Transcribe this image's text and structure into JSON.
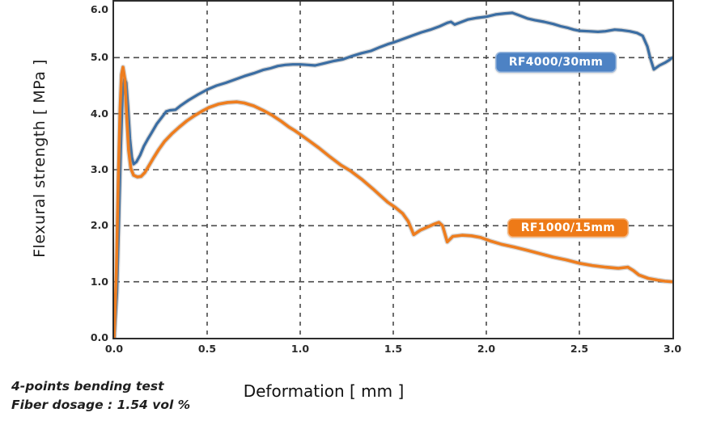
{
  "chart_data": {
    "type": "line",
    "xlabel": "Deformation [ mm ]",
    "ylabel": "Flexural strength [ MPa ]",
    "xlim": [
      0,
      3.0
    ],
    "ylim": [
      0,
      6.0
    ],
    "x_ticks": [
      "0.0",
      "0.5",
      "1.0",
      "1.5",
      "2.0",
      "2.5",
      "3.0"
    ],
    "y_ticks": [
      "0.0",
      "1.0",
      "2.0",
      "3.0",
      "4.0",
      "5.0",
      "6.0"
    ],
    "grid": "dashed",
    "grid_color": "#4a4a4a",
    "border_color": "#2d2d2d",
    "legend_position": "on-chart",
    "series": [
      {
        "name": "RF4000/30mm",
        "color": "#3A6DA3",
        "label_bg": "#4D82C4",
        "points": [
          [
            0.0,
            0.0
          ],
          [
            0.015,
            0.8
          ],
          [
            0.025,
            2.0
          ],
          [
            0.035,
            3.3
          ],
          [
            0.045,
            4.3
          ],
          [
            0.055,
            4.62
          ],
          [
            0.065,
            4.55
          ],
          [
            0.075,
            4.1
          ],
          [
            0.085,
            3.55
          ],
          [
            0.095,
            3.22
          ],
          [
            0.105,
            3.1
          ],
          [
            0.12,
            3.14
          ],
          [
            0.14,
            3.26
          ],
          [
            0.16,
            3.42
          ],
          [
            0.18,
            3.54
          ],
          [
            0.2,
            3.65
          ],
          [
            0.23,
            3.82
          ],
          [
            0.26,
            3.95
          ],
          [
            0.28,
            4.04
          ],
          [
            0.3,
            4.06
          ],
          [
            0.33,
            4.07
          ],
          [
            0.36,
            4.15
          ],
          [
            0.4,
            4.24
          ],
          [
            0.45,
            4.34
          ],
          [
            0.5,
            4.43
          ],
          [
            0.55,
            4.5
          ],
          [
            0.6,
            4.55
          ],
          [
            0.65,
            4.61
          ],
          [
            0.7,
            4.67
          ],
          [
            0.75,
            4.72
          ],
          [
            0.8,
            4.78
          ],
          [
            0.84,
            4.81
          ],
          [
            0.88,
            4.85
          ],
          [
            0.92,
            4.87
          ],
          [
            0.96,
            4.88
          ],
          [
            1.0,
            4.88
          ],
          [
            1.04,
            4.87
          ],
          [
            1.08,
            4.86
          ],
          [
            1.13,
            4.9
          ],
          [
            1.18,
            4.94
          ],
          [
            1.23,
            4.97
          ],
          [
            1.28,
            5.03
          ],
          [
            1.33,
            5.08
          ],
          [
            1.38,
            5.12
          ],
          [
            1.43,
            5.19
          ],
          [
            1.47,
            5.24
          ],
          [
            1.5,
            5.27
          ],
          [
            1.55,
            5.33
          ],
          [
            1.6,
            5.39
          ],
          [
            1.65,
            5.45
          ],
          [
            1.7,
            5.5
          ],
          [
            1.75,
            5.56
          ],
          [
            1.79,
            5.62
          ],
          [
            1.81,
            5.64
          ],
          [
            1.83,
            5.59
          ],
          [
            1.86,
            5.63
          ],
          [
            1.9,
            5.68
          ],
          [
            1.95,
            5.71
          ],
          [
            2.0,
            5.73
          ],
          [
            2.05,
            5.77
          ],
          [
            2.1,
            5.79
          ],
          [
            2.14,
            5.8
          ],
          [
            2.18,
            5.75
          ],
          [
            2.22,
            5.7
          ],
          [
            2.26,
            5.67
          ],
          [
            2.31,
            5.64
          ],
          [
            2.36,
            5.6
          ],
          [
            2.4,
            5.56
          ],
          [
            2.44,
            5.53
          ],
          [
            2.47,
            5.5
          ],
          [
            2.5,
            5.48
          ],
          [
            2.55,
            5.47
          ],
          [
            2.6,
            5.46
          ],
          [
            2.64,
            5.47
          ],
          [
            2.69,
            5.5
          ],
          [
            2.73,
            5.49
          ],
          [
            2.77,
            5.47
          ],
          [
            2.81,
            5.44
          ],
          [
            2.84,
            5.39
          ],
          [
            2.865,
            5.2
          ],
          [
            2.88,
            5.0
          ],
          [
            2.9,
            4.79
          ],
          [
            2.93,
            4.86
          ],
          [
            2.96,
            4.91
          ],
          [
            2.98,
            4.95
          ],
          [
            3.0,
            5.0
          ]
        ]
      },
      {
        "name": "RF1000/15mm",
        "color": "#EE7D1E",
        "label_bg": "#EE7A17",
        "points": [
          [
            0.0,
            0.0
          ],
          [
            0.012,
            1.2
          ],
          [
            0.022,
            2.8
          ],
          [
            0.032,
            4.1
          ],
          [
            0.04,
            4.7
          ],
          [
            0.048,
            4.83
          ],
          [
            0.058,
            4.62
          ],
          [
            0.068,
            3.95
          ],
          [
            0.078,
            3.35
          ],
          [
            0.09,
            3.02
          ],
          [
            0.105,
            2.9
          ],
          [
            0.125,
            2.87
          ],
          [
            0.145,
            2.88
          ],
          [
            0.165,
            2.95
          ],
          [
            0.185,
            3.06
          ],
          [
            0.21,
            3.2
          ],
          [
            0.24,
            3.36
          ],
          [
            0.27,
            3.5
          ],
          [
            0.31,
            3.64
          ],
          [
            0.35,
            3.76
          ],
          [
            0.39,
            3.87
          ],
          [
            0.43,
            3.96
          ],
          [
            0.47,
            4.04
          ],
          [
            0.51,
            4.11
          ],
          [
            0.56,
            4.17
          ],
          [
            0.61,
            4.2
          ],
          [
            0.66,
            4.21
          ],
          [
            0.7,
            4.19
          ],
          [
            0.75,
            4.14
          ],
          [
            0.8,
            4.06
          ],
          [
            0.85,
            3.97
          ],
          [
            0.9,
            3.86
          ],
          [
            0.94,
            3.76
          ],
          [
            0.97,
            3.7
          ],
          [
            1.0,
            3.63
          ],
          [
            1.05,
            3.51
          ],
          [
            1.1,
            3.39
          ],
          [
            1.16,
            3.23
          ],
          [
            1.22,
            3.08
          ],
          [
            1.27,
            2.98
          ],
          [
            1.33,
            2.83
          ],
          [
            1.39,
            2.66
          ],
          [
            1.43,
            2.54
          ],
          [
            1.47,
            2.42
          ],
          [
            1.51,
            2.33
          ],
          [
            1.55,
            2.22
          ],
          [
            1.58,
            2.08
          ],
          [
            1.61,
            1.84
          ],
          [
            1.645,
            1.92
          ],
          [
            1.68,
            1.97
          ],
          [
            1.72,
            2.03
          ],
          [
            1.745,
            2.06
          ],
          [
            1.765,
            2.0
          ],
          [
            1.79,
            1.71
          ],
          [
            1.82,
            1.81
          ],
          [
            1.87,
            1.83
          ],
          [
            1.92,
            1.82
          ],
          [
            1.97,
            1.79
          ],
          [
            2.02,
            1.73
          ],
          [
            2.08,
            1.67
          ],
          [
            2.15,
            1.62
          ],
          [
            2.22,
            1.56
          ],
          [
            2.29,
            1.5
          ],
          [
            2.36,
            1.44
          ],
          [
            2.43,
            1.39
          ],
          [
            2.5,
            1.33
          ],
          [
            2.57,
            1.29
          ],
          [
            2.64,
            1.26
          ],
          [
            2.71,
            1.24
          ],
          [
            2.76,
            1.26
          ],
          [
            2.79,
            1.2
          ],
          [
            2.82,
            1.12
          ],
          [
            2.87,
            1.06
          ],
          [
            2.92,
            1.03
          ],
          [
            2.96,
            1.01
          ],
          [
            3.0,
            1.0
          ]
        ]
      }
    ]
  },
  "footnote": {
    "line1": "4-points bending test",
    "line2": "Fiber dosage : 1.54 vol %"
  }
}
